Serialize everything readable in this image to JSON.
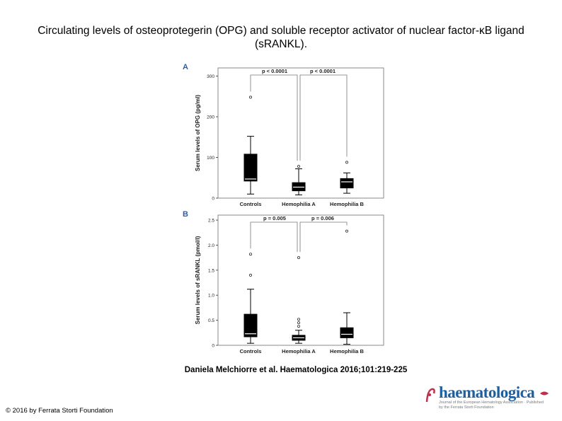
{
  "slide": {
    "title": "Circulating levels of osteoprotegerin (OPG) and soluble receptor activator of nuclear factor-κB ligand (sRANKL).",
    "citation": "Daniela Melchiorre et al. Haematologica 2016;101:219-225",
    "copyright": "© 2016 by Ferrata Storti Foundation",
    "logo_text": "haematologica",
    "logo_subtext": "Journal of the European Hematology Association · Published by the Ferrata Storti Foundation"
  },
  "colors": {
    "box": "#000000",
    "median": "#ffffff",
    "panel_letter": "#2e5fa3",
    "logo": "#1e5fa0",
    "logo_accent": "#c0304b"
  },
  "chart_data": [
    {
      "type": "box",
      "panel": "A",
      "ylabel": "Serum levels of OPG (pg/ml)",
      "categories": [
        "Controls",
        "Hemophilia A",
        "Hemophilia B"
      ],
      "ylim": [
        0,
        320
      ],
      "yticks": [
        0,
        100,
        200,
        300
      ],
      "ytick_labels": [
        "0",
        "100",
        "200",
        "300"
      ],
      "boxes": [
        {
          "name": "Controls",
          "whisker_low": 10,
          "q1": 42,
          "median": 47,
          "q3": 108,
          "whisker_high": 152,
          "outliers": [
            248
          ]
        },
        {
          "name": "Hemophilia A",
          "whisker_low": 8,
          "q1": 18,
          "median": 27,
          "q3": 38,
          "whisker_high": 72,
          "outliers": [
            78
          ]
        },
        {
          "name": "Hemophilia B",
          "whisker_low": 12,
          "q1": 25,
          "median": 40,
          "q3": 48,
          "whisker_high": 62,
          "outliers": [
            88
          ]
        }
      ],
      "comparisons": [
        {
          "from": "Controls",
          "to": "Hemophilia A",
          "label": "p < 0.0001"
        },
        {
          "from": "Hemophilia A",
          "to": "Hemophilia B",
          "label": "p < 0.0001"
        }
      ]
    },
    {
      "type": "box",
      "panel": "B",
      "ylabel": "Serum levels of sRANKL (pmol/l)",
      "categories": [
        "Controls",
        "Hemophilia A",
        "Hemophilia B"
      ],
      "ylim": [
        0,
        2.6
      ],
      "yticks": [
        0,
        0.5,
        1.0,
        1.5,
        2.0,
        2.5
      ],
      "ytick_labels": [
        "0",
        "0.5",
        "1.0",
        "1.5",
        "2.0",
        "2.5"
      ],
      "boxes": [
        {
          "name": "Controls",
          "whisker_low": 0.04,
          "q1": 0.17,
          "median": 0.23,
          "q3": 0.62,
          "whisker_high": 1.12,
          "outliers": [
            1.4,
            1.82
          ]
        },
        {
          "name": "Hemophilia A",
          "whisker_low": 0.04,
          "q1": 0.1,
          "median": 0.15,
          "q3": 0.2,
          "whisker_high": 0.3,
          "outliers": [
            0.38,
            0.45,
            0.52,
            1.75
          ]
        },
        {
          "name": "Hemophilia B",
          "whisker_low": 0.02,
          "q1": 0.15,
          "median": 0.22,
          "q3": 0.35,
          "whisker_high": 0.65,
          "outliers": [
            2.28
          ]
        }
      ],
      "comparisons": [
        {
          "from": "Controls",
          "to": "Hemophilia A",
          "label": "p = 0.005"
        },
        {
          "from": "Hemophilia A",
          "to": "Hemophilia B",
          "label": "p = 0.006"
        }
      ]
    }
  ]
}
